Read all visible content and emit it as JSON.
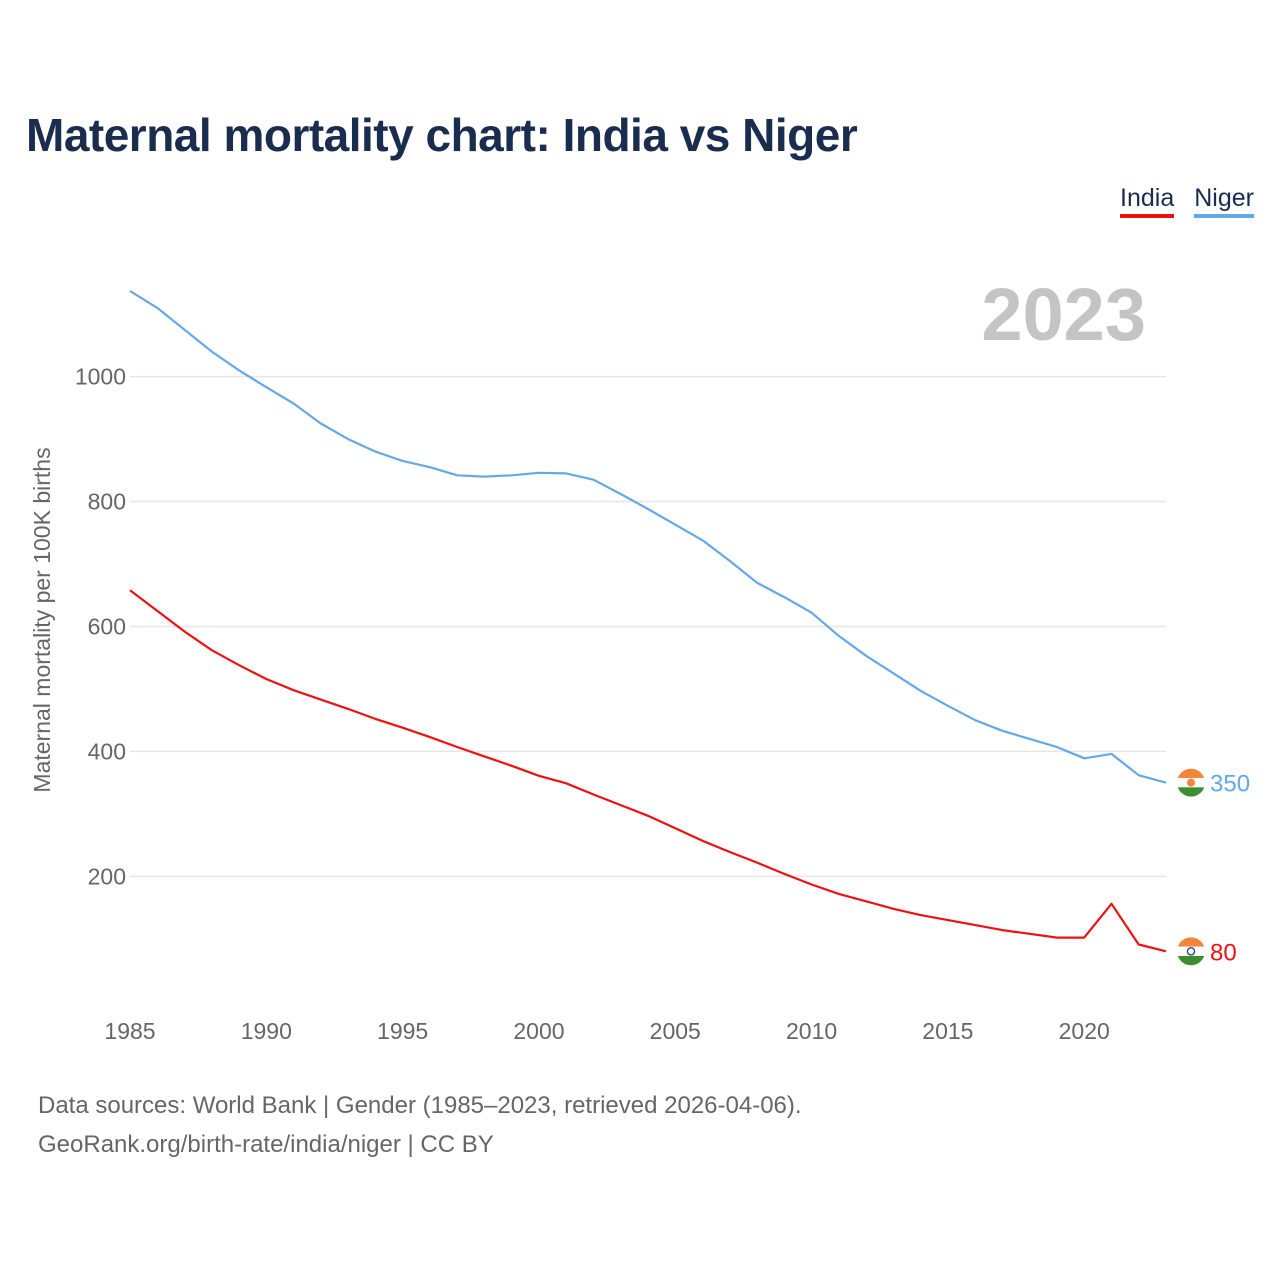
{
  "title": "Maternal mortality chart: India vs Niger",
  "legend": [
    {
      "label": "India",
      "color": "#ee1111"
    },
    {
      "label": "Niger",
      "color": "#64a8e8"
    }
  ],
  "year_watermark": "2023",
  "source": {
    "line1": "Data sources: World Bank | Gender (1985–2023, retrieved 2026-04-06).",
    "line2": "GeoRank.org/birth-rate/india/niger | CC BY"
  },
  "chart_data": {
    "type": "line",
    "title": "Maternal mortality chart: India vs Niger",
    "xlabel": "",
    "ylabel": "Maternal mortality per 100K births",
    "xlim": [
      1985,
      2023
    ],
    "ylim": [
      0,
      1150
    ],
    "x_ticks": [
      1985,
      1990,
      1995,
      2000,
      2005,
      2010,
      2015,
      2020
    ],
    "y_ticks": [
      200,
      400,
      600,
      800,
      1000
    ],
    "x": [
      1985,
      1986,
      1987,
      1988,
      1989,
      1990,
      1991,
      1992,
      1993,
      1994,
      1995,
      1996,
      1997,
      1998,
      1999,
      2000,
      2001,
      2002,
      2003,
      2004,
      2005,
      2006,
      2007,
      2008,
      2009,
      2010,
      2011,
      2012,
      2013,
      2014,
      2015,
      2016,
      2017,
      2018,
      2019,
      2020,
      2021,
      2022,
      2023
    ],
    "series": [
      {
        "name": "India",
        "color": "#ee1111",
        "end_label": "80",
        "values": [
          658,
          625,
          592,
          562,
          538,
          516,
          498,
          483,
          468,
          452,
          438,
          423,
          407,
          392,
          377,
          361,
          349,
          331,
          314,
          297,
          277,
          257,
          239,
          222,
          204,
          187,
          172,
          160,
          148,
          138,
          130,
          122,
          114,
          108,
          102,
          102,
          156,
          91,
          80
        ]
      },
      {
        "name": "Niger",
        "color": "#64a8e8",
        "end_label": "350",
        "values": [
          1137,
          1110,
          1075,
          1040,
          1010,
          983,
          957,
          925,
          900,
          880,
          865,
          855,
          842,
          840,
          842,
          846,
          845,
          835,
          812,
          788,
          763,
          738,
          705,
          670,
          647,
          622,
          585,
          553,
          525,
          497,
          473,
          450,
          433,
          420,
          407,
          389,
          396,
          362,
          350
        ]
      }
    ]
  }
}
